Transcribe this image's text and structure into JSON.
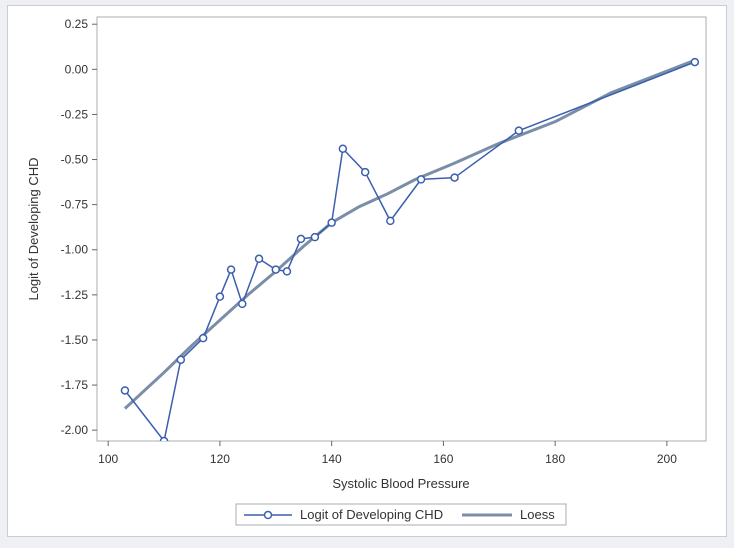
{
  "chart_data": {
    "type": "line",
    "title": "",
    "xlabel": "Systolic Blood Pressure",
    "ylabel": "Logit of Developing CHD",
    "xlim": [
      98,
      207
    ],
    "ylim": [
      -2.06,
      0.29
    ],
    "x_ticks": [
      100,
      120,
      140,
      160,
      180,
      200
    ],
    "x_tick_labels": [
      "100",
      "120",
      "140",
      "160",
      "180",
      "200"
    ],
    "y_ticks": [
      0.25,
      0,
      -0.25,
      -0.5,
      -0.75,
      -1,
      -1.25,
      -1.5,
      -1.75,
      -2
    ],
    "y_tick_labels": [
      "0.25",
      "0.00",
      "-0.25",
      "-0.50",
      "-0.75",
      "-1.00",
      "-1.25",
      "-1.50",
      "-1.75",
      "-2.00"
    ],
    "grid": false,
    "legend_position": "bottom-center",
    "series": [
      {
        "name": "Logit of Developing CHD",
        "style": "line-markers",
        "color": "#3b5fae",
        "x": [
          103,
          110,
          113,
          117,
          120,
          122,
          124,
          127,
          130,
          132,
          134.5,
          137,
          140,
          142,
          146,
          150.5,
          156,
          162,
          173.5,
          205
        ],
        "y": [
          -1.78,
          -2.06,
          -1.61,
          -1.49,
          -1.26,
          -1.11,
          -1.3,
          -1.05,
          -1.11,
          -1.12,
          -0.94,
          -0.93,
          -0.85,
          -0.44,
          -0.57,
          -0.84,
          -0.61,
          -0.6,
          -0.34,
          0.04
        ]
      },
      {
        "name": "Loess",
        "style": "line",
        "color": "#7a8ea8",
        "x": [
          103,
          110,
          115,
          120,
          125,
          130,
          135,
          140,
          145,
          150,
          155,
          162,
          170,
          180,
          190,
          205
        ],
        "y": [
          -1.88,
          -1.68,
          -1.53,
          -1.39,
          -1.25,
          -1.12,
          -0.98,
          -0.85,
          -0.76,
          -0.69,
          -0.61,
          -0.52,
          -0.41,
          -0.29,
          -0.13,
          0.05
        ]
      }
    ]
  }
}
